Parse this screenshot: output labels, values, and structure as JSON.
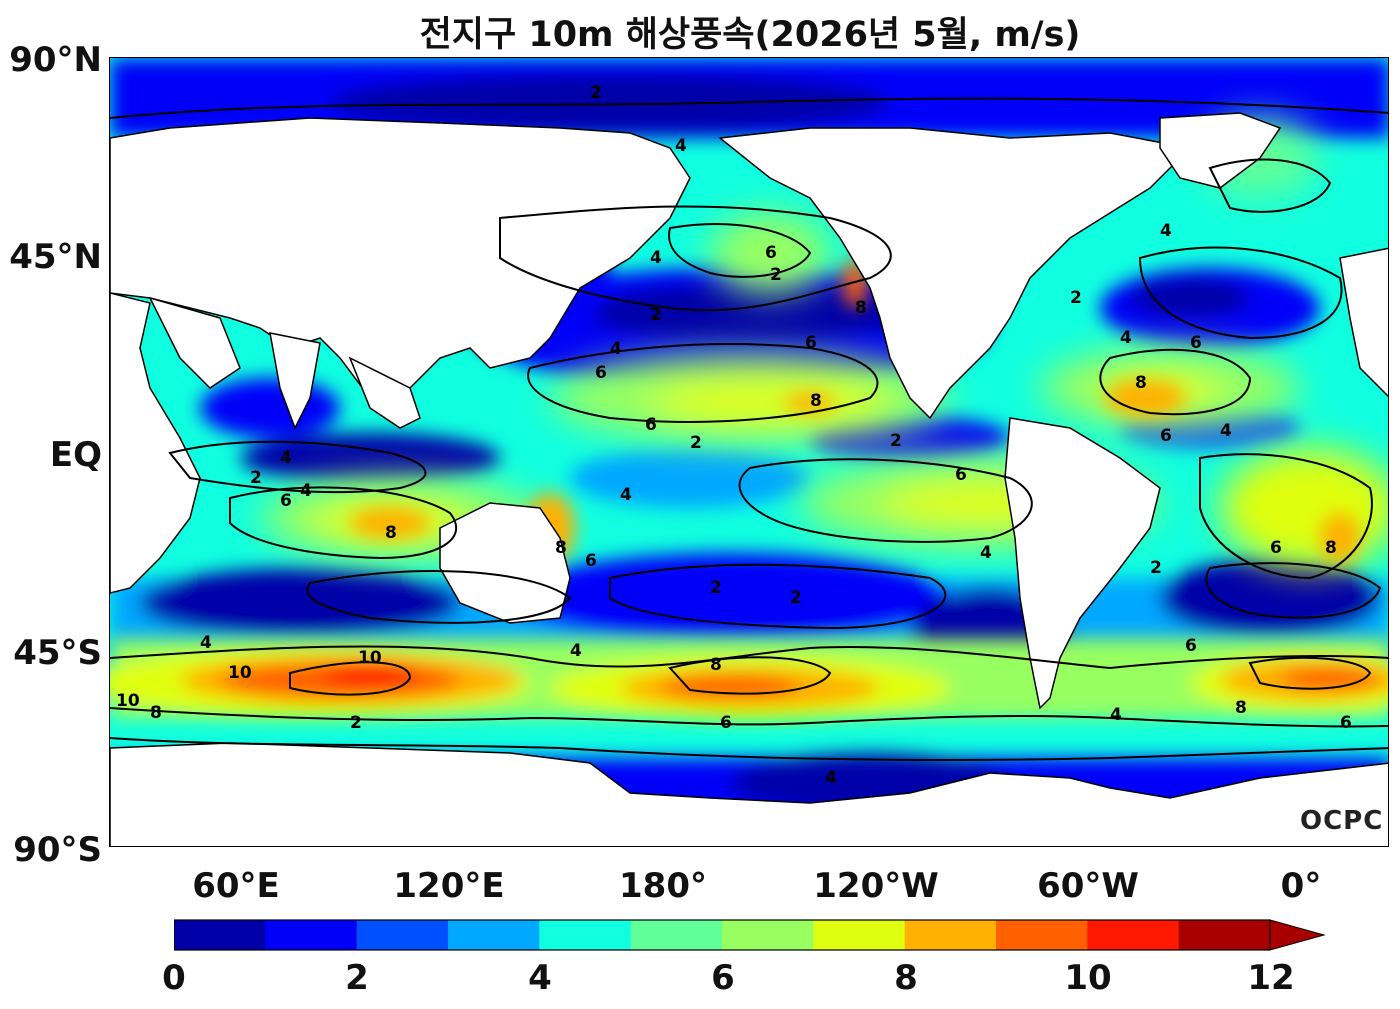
{
  "title": "전지구 10m 해상풍속(2026년 5월, m/s)",
  "lat_labels": [
    "90°N",
    "45°N",
    "EQ",
    "45°S",
    "90°S"
  ],
  "lon_labels": [
    "60°E",
    "120°E",
    "180°",
    "120°W",
    "60°W",
    "0°"
  ],
  "colorbar": {
    "ticks": [
      "0",
      "2",
      "4",
      "6",
      "8",
      "10",
      "12"
    ],
    "colors": [
      "#0000a8",
      "#0000f8",
      "#0050ff",
      "#00a8ff",
      "#10ffe0",
      "#60ff98",
      "#98ff60",
      "#e0ff10",
      "#ffb000",
      "#ff6000",
      "#ff1800",
      "#a80000"
    ],
    "extend": "max"
  },
  "contour_labels": [
    "2",
    "4",
    "6",
    "8",
    "10"
  ],
  "watermark": "OCPC"
}
